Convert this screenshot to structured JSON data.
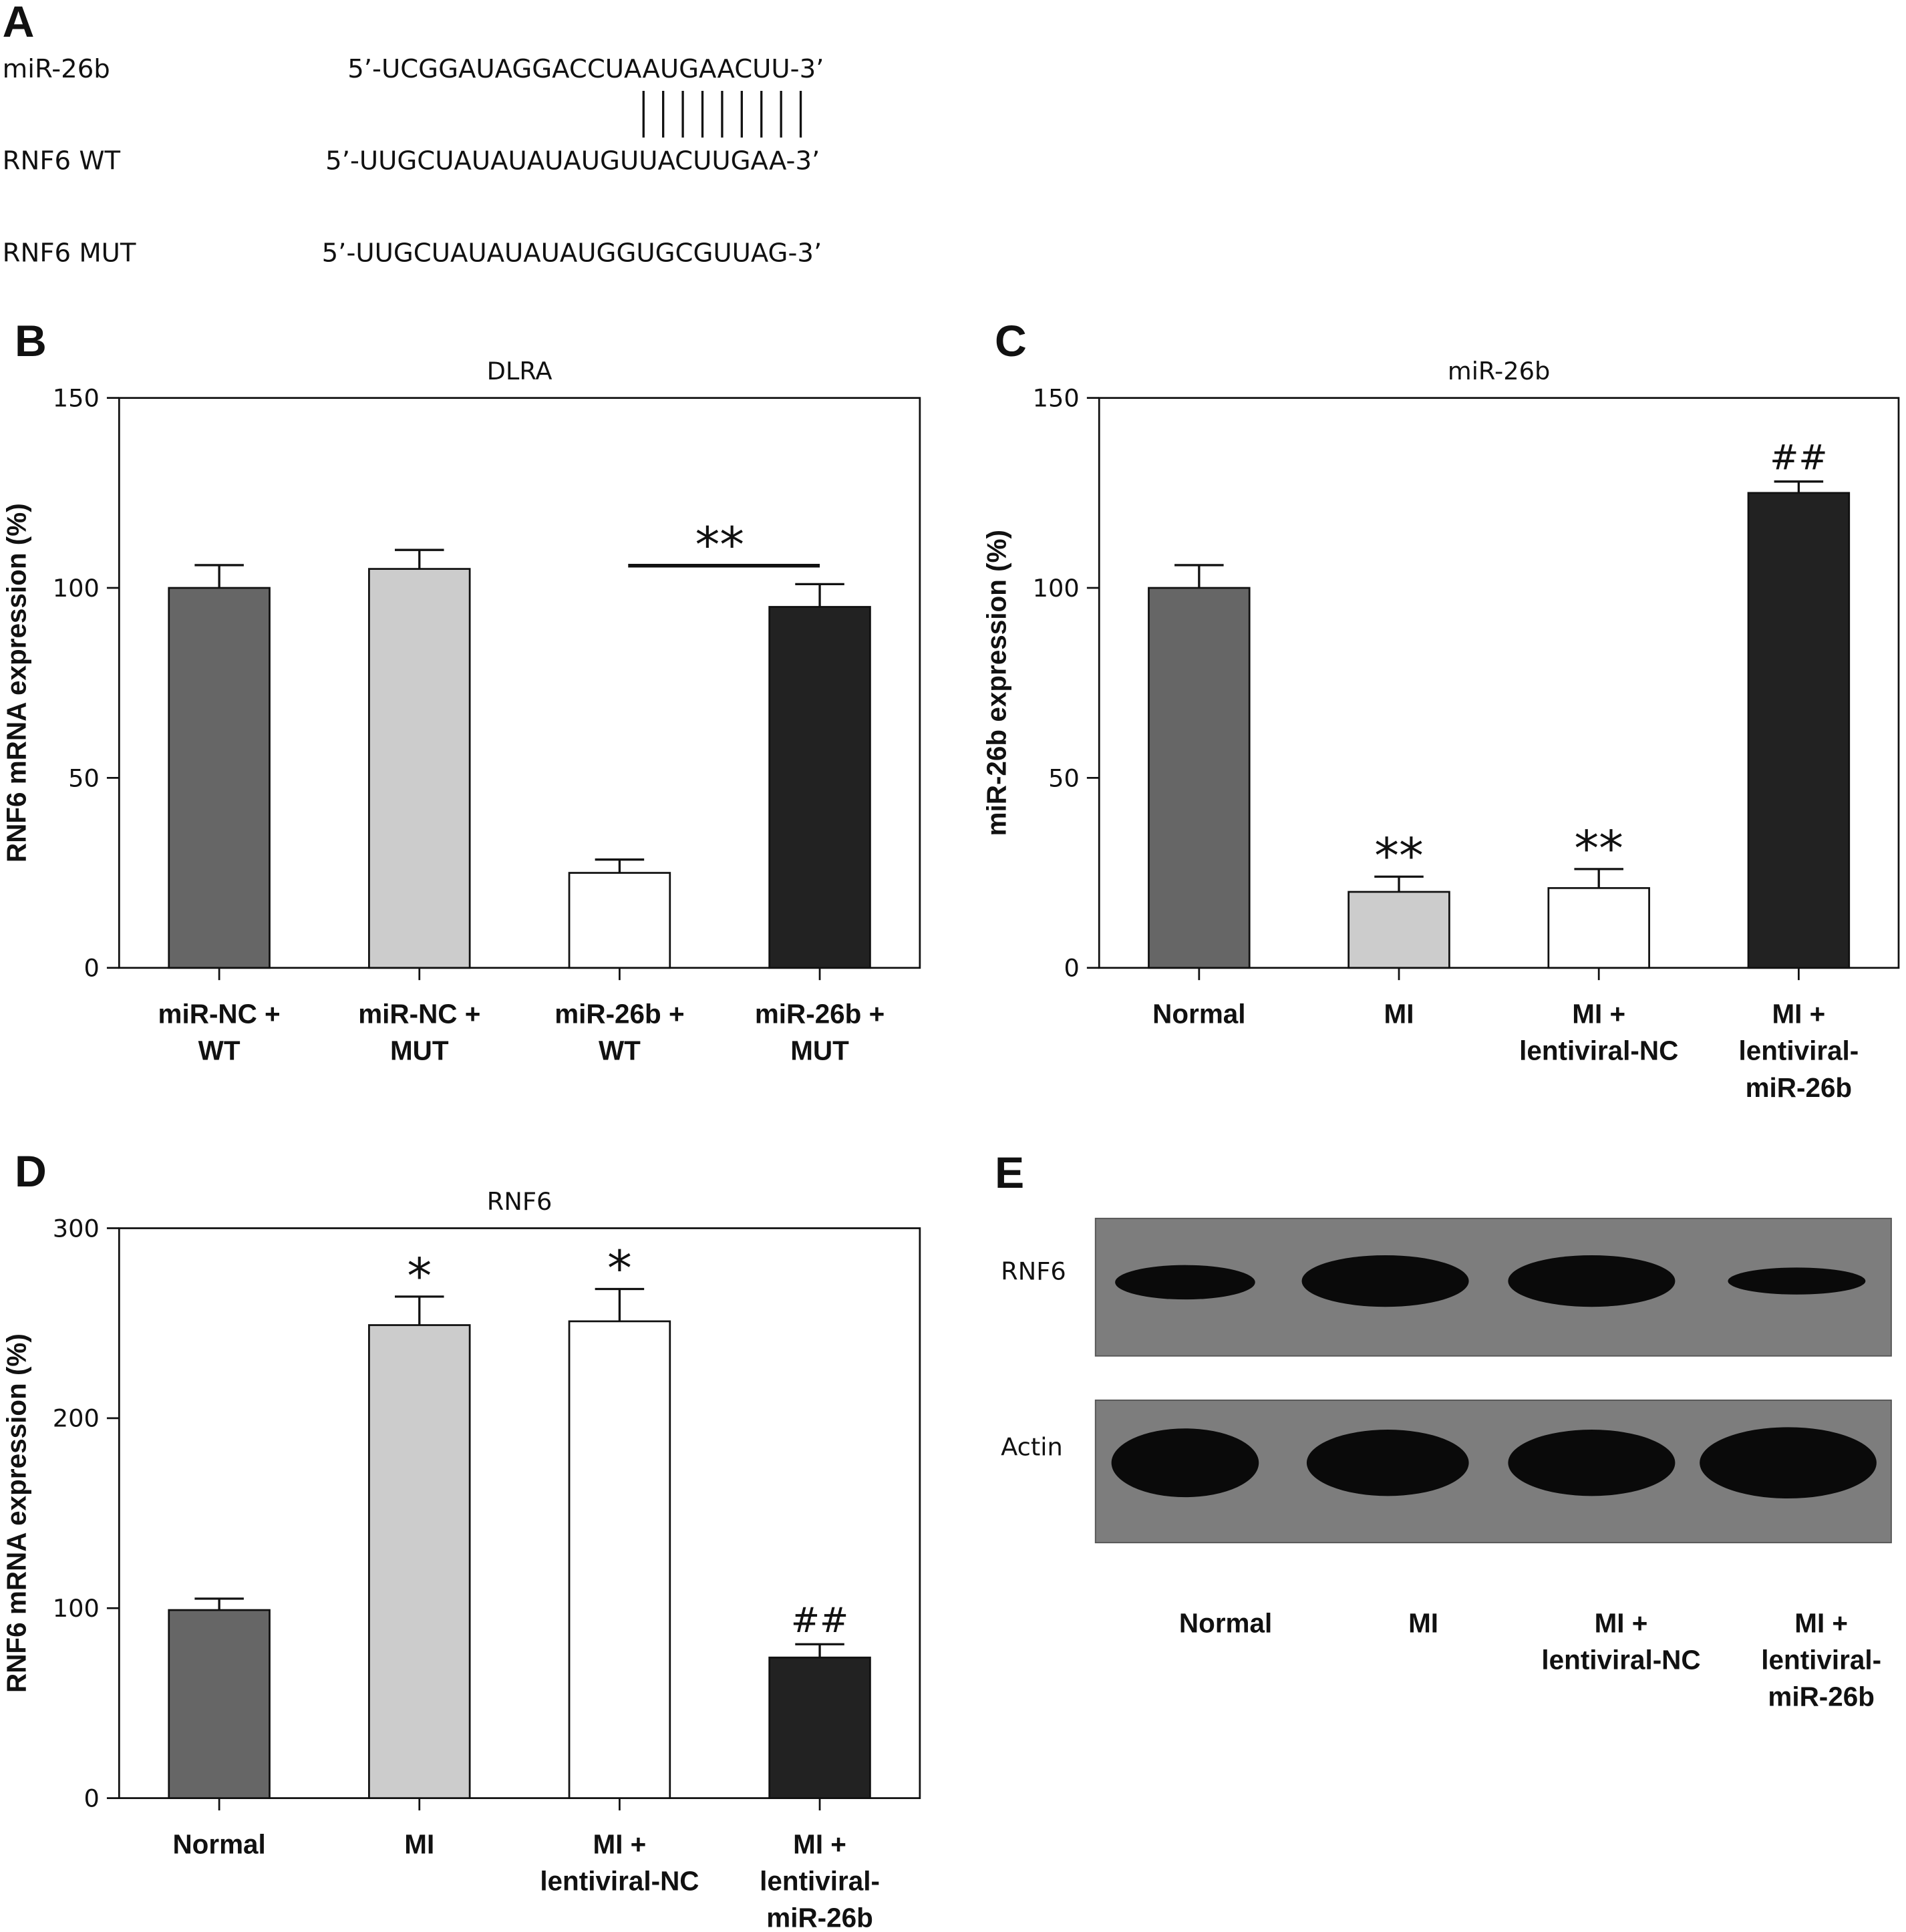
{
  "panel_a": {
    "letter": "A",
    "rows": [
      {
        "name": "miR-26b",
        "sequence": "5’-UCGGAUAGGACCUAAUGAACUU-3’"
      },
      {
        "name": "RNF6 WT",
        "sequence": "5’-UUGCUAUAUAUAUGUUACUUGAA-3’"
      },
      {
        "name": "RNF6 MUT",
        "sequence": "5’-UUGCUAUAUAUAUGGUGCGUUAG-3’"
      }
    ]
  },
  "chart_data": [
    {
      "type": "bar",
      "panel": "B",
      "title": "DLRA",
      "y_label": "RNF6 mRNA expression (%)",
      "categories": [
        [
          "miR-NC +",
          "WT"
        ],
        [
          "miR-NC +",
          "MUT"
        ],
        [
          "miR-26b +",
          "WT"
        ],
        [
          "miR-26b +",
          "MUT"
        ]
      ],
      "values": [
        100,
        105,
        25,
        95
      ],
      "errors": [
        6,
        5,
        3.5,
        6
      ],
      "colors": [
        "#666666",
        "#cccccc",
        "#ffffff",
        "#222222"
      ],
      "annotations": [
        null,
        null,
        null,
        null
      ],
      "brackets": [
        {
          "text": "**",
          "between": [
            2,
            3
          ]
        }
      ],
      "ylim": [
        0,
        150
      ],
      "yticks": [
        0,
        50,
        100,
        150
      ]
    },
    {
      "type": "bar",
      "panel": "C",
      "title": "miR-26b",
      "y_label": "miR-26b expression (%)",
      "categories": [
        [
          "Normal"
        ],
        [
          "MI"
        ],
        [
          "MI +",
          "lentiviral-NC"
        ],
        [
          "MI +",
          "lentiviral-",
          "miR-26b"
        ]
      ],
      "values": [
        100,
        20,
        21,
        125
      ],
      "errors": [
        6,
        4,
        5,
        3
      ],
      "colors": [
        "#666666",
        "#cccccc",
        "#ffffff",
        "#222222"
      ],
      "annotations": [
        null,
        "**",
        "**",
        "##"
      ],
      "ylim": [
        0,
        150
      ],
      "yticks": [
        0,
        50,
        100,
        150
      ]
    },
    {
      "type": "bar",
      "panel": "D",
      "title": "RNF6",
      "y_label": "RNF6 mRNA expression (%)",
      "categories": [
        [
          "Normal"
        ],
        [
          "MI"
        ],
        [
          "MI +",
          "lentiviral-NC"
        ],
        [
          "MI +",
          "lentiviral-",
          "miR-26b"
        ]
      ],
      "values": [
        99,
        249,
        251,
        74
      ],
      "errors": [
        6,
        15,
        17,
        7
      ],
      "colors": [
        "#666666",
        "#cccccc",
        "#ffffff",
        "#222222"
      ],
      "annotations": [
        null,
        "*",
        "*",
        "##"
      ],
      "ylim": [
        0,
        300
      ],
      "yticks": [
        0,
        100,
        200,
        300
      ]
    }
  ],
  "panel_e": {
    "letter": "E",
    "blots": [
      "RNF6",
      "Actin"
    ],
    "lanes": [
      [
        "Normal"
      ],
      [
        "MI"
      ],
      [
        "MI +",
        "lentiviral-NC"
      ],
      [
        "MI +",
        "lentiviral-",
        "miR-26b"
      ]
    ]
  }
}
